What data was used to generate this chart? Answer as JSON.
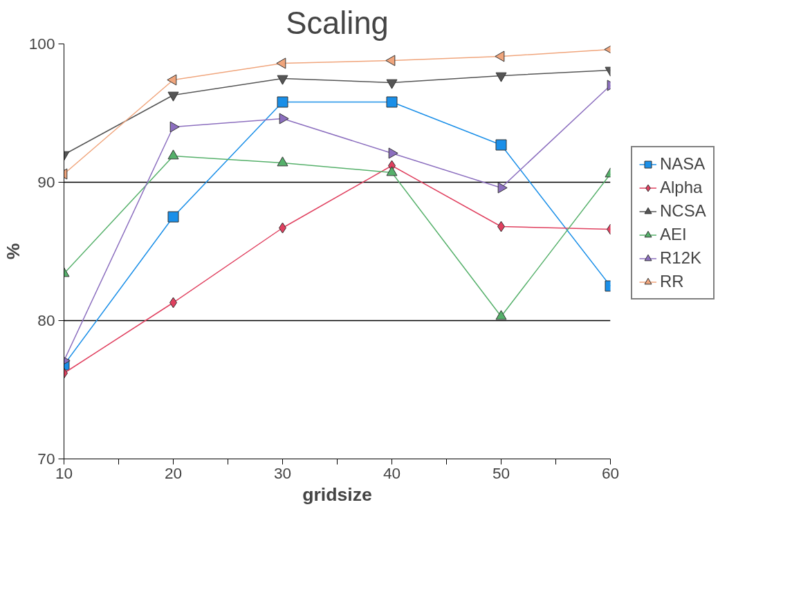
{
  "chart_data": {
    "type": "line",
    "title": "Scaling",
    "xlabel": "gridsize",
    "ylabel": "%",
    "x": [
      10,
      20,
      30,
      40,
      50,
      60
    ],
    "xlim": [
      10,
      60
    ],
    "xticks": [
      10,
      {
        "value": 15,
        "label": null
      },
      20,
      {
        "value": 25,
        "label": null
      },
      30,
      {
        "value": 35,
        "label": null
      },
      40,
      {
        "value": 45,
        "label": null
      },
      50,
      {
        "value": 55,
        "label": null
      },
      60
    ],
    "ylim": [
      70,
      100
    ],
    "yticks": [
      70,
      80,
      90,
      100
    ],
    "grid": "y",
    "legend": "right",
    "series": [
      {
        "name": "NASA",
        "color": "#1a8fe8",
        "marker": "square",
        "values": [
          76.8,
          87.5,
          95.8,
          95.8,
          92.7,
          82.5
        ]
      },
      {
        "name": "Alpha",
        "color": "#e0405f",
        "marker": "diamond",
        "values": [
          76.2,
          81.3,
          86.7,
          91.2,
          86.8,
          86.6
        ]
      },
      {
        "name": "NCSA",
        "color": "#555555",
        "marker": "triangle",
        "values": [
          92.0,
          96.3,
          97.5,
          97.2,
          97.7,
          98.1
        ]
      },
      {
        "name": "AEI",
        "color": "#55b06a",
        "marker": "triangle",
        "values": [
          83.4,
          91.9,
          91.4,
          90.7,
          80.3,
          90.6
        ]
      },
      {
        "name": "R12K",
        "color": "#8c6fbf",
        "marker": "triangle",
        "values": [
          77.1,
          94.0,
          94.6,
          92.1,
          89.6,
          97.0
        ]
      },
      {
        "name": "RR",
        "color": "#f0a57c",
        "marker": "triangle",
        "values": [
          90.6,
          97.4,
          98.6,
          98.8,
          99.1,
          99.6
        ]
      }
    ]
  }
}
